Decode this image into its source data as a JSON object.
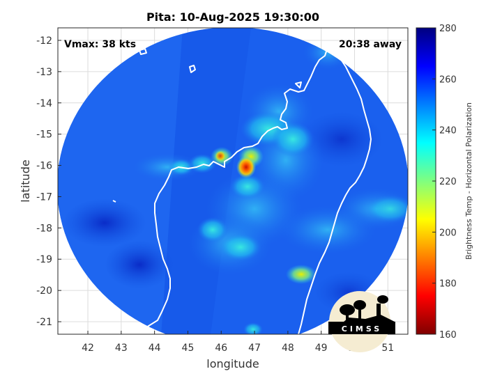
{
  "title": "Pita: 10-Aug-2025 19:30:00",
  "vmax_text": "Vmax: 38 kts",
  "away_text": "20:38 away",
  "xlabel": "longitude",
  "ylabel": "latitude",
  "x_ticks": [
    "42",
    "43",
    "44",
    "45",
    "46",
    "47",
    "48",
    "49",
    "50",
    "51"
  ],
  "y_ticks": [
    "-12",
    "-13",
    "-14",
    "-15",
    "-16",
    "-17",
    "-18",
    "-19",
    "-20",
    "-21"
  ],
  "colorbar": {
    "label": "Brightness Temp - Horizontal Polarization",
    "ticks": [
      "280",
      "260",
      "240",
      "220",
      "200",
      "180",
      "160"
    ],
    "range": [
      160,
      280
    ],
    "colormap": "jet"
  },
  "logo": {
    "text": "CIMSS"
  },
  "map": {
    "lon_range": [
      41.1,
      51.6
    ],
    "lat_range": [
      -21.4,
      -11.6
    ],
    "background_temp_K": 262
  },
  "chart_data": {
    "type": "heatmap",
    "title": "Pita: 10-Aug-2025 19:30:00",
    "xlabel": "longitude",
    "ylabel": "latitude",
    "xlim": [
      41.1,
      51.6
    ],
    "ylim": [
      -21.4,
      -11.6
    ],
    "grid": true,
    "colorbar_range": [
      160,
      280
    ],
    "features": [
      {
        "lon": 46.7,
        "lat": -16.0,
        "temp_K": 188
      },
      {
        "lon": 46.1,
        "lat": -15.6,
        "temp_K": 205
      },
      {
        "lon": 45.7,
        "lat": -15.6,
        "temp_K": 222
      },
      {
        "lon": 47.2,
        "lat": -15.2,
        "temp_K": 232
      },
      {
        "lon": 47.9,
        "lat": -14.8,
        "temp_K": 235
      },
      {
        "lon": 48.3,
        "lat": -15.5,
        "temp_K": 240
      },
      {
        "lon": 46.8,
        "lat": -16.8,
        "temp_K": 240
      },
      {
        "lon": 48.4,
        "lat": -19.4,
        "temp_K": 218
      },
      {
        "lon": 46.8,
        "lat": -18.7,
        "temp_K": 238
      },
      {
        "lon": 45.9,
        "lat": -18.3,
        "temp_K": 244
      },
      {
        "lon": 47.4,
        "lat": -19.1,
        "temp_K": 244
      },
      {
        "lon": 45.2,
        "lat": -15.8,
        "temp_K": 240
      },
      {
        "lon": 44.7,
        "lat": -15.9,
        "temp_K": 242
      },
      {
        "lon": 47.0,
        "lat": -21.2,
        "temp_K": 238
      },
      {
        "lon": 51.2,
        "lat": -18.0,
        "temp_K": 244
      },
      {
        "lon": 50.3,
        "lat": -18.4,
        "temp_K": 246
      },
      {
        "lon": 48.9,
        "lat": -18.8,
        "temp_K": 250
      },
      {
        "lon": 49.6,
        "lat": -17.2,
        "temp_K": 250
      },
      {
        "lon": 48.9,
        "lat": -13.1,
        "temp_K": 252
      },
      {
        "lon": 43.5,
        "lat": -18.6,
        "temp_K": 270
      },
      {
        "lon": 42.3,
        "lat": -16.3,
        "temp_K": 252
      },
      {
        "lon": 41.7,
        "lat": -17.0,
        "temp_K": 250
      }
    ]
  }
}
